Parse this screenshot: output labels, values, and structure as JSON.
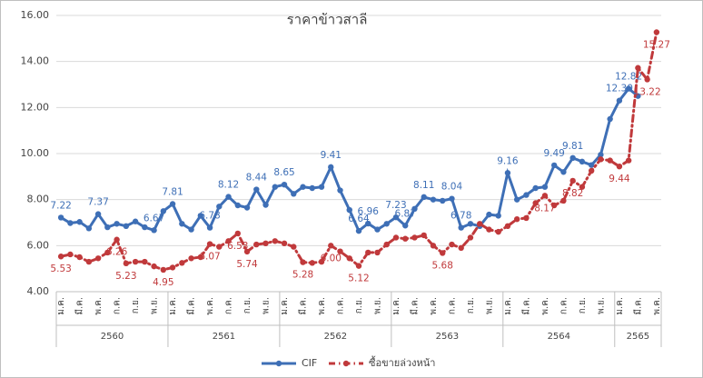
{
  "chart_data": {
    "type": "line",
    "title": "ราคาข้าวสาลี",
    "categories": [
      "ม.ค.",
      null,
      "มี.ค.",
      null,
      "พ.ค.",
      null,
      "ก.ค.",
      null,
      "ก.ย.",
      null,
      "พ.ย.",
      null,
      "ม.ค.",
      null,
      "มี.ค.",
      null,
      "พ.ค.",
      null,
      "ก.ค.",
      null,
      "ก.ย.",
      null,
      "พ.ย.",
      null,
      "ม.ค.",
      null,
      "มี.ค.",
      null,
      "พ.ค.",
      null,
      "ก.ค.",
      null,
      "ก.ย.",
      null,
      "พ.ย.",
      null,
      "ม.ค.",
      null,
      "มี.ค.",
      null,
      "พ.ค.",
      null,
      "ก.ค.",
      null,
      "ก.ย.",
      null,
      "พ.ย.",
      null,
      "ม.ค.",
      null,
      "มี.ค.",
      null,
      "พ.ค.",
      null,
      "ก.ค.",
      null,
      "ก.ย.",
      null,
      "พ.ย.",
      null,
      "ม.ค.",
      null,
      "มี.ค.",
      null,
      "พ.ค."
    ],
    "year_groups": [
      {
        "label": "2560",
        "months": 12
      },
      {
        "label": "2561",
        "months": 12
      },
      {
        "label": "2562",
        "months": 12
      },
      {
        "label": "2563",
        "months": 12
      },
      {
        "label": "2564",
        "months": 12
      },
      {
        "label": "2565",
        "months": 5
      }
    ],
    "series": [
      {
        "name": "CIF",
        "color": "#3e6fb6",
        "dashed": false,
        "values": [
          7.22,
          6.98,
          7.03,
          6.75,
          7.37,
          6.8,
          6.95,
          6.85,
          7.05,
          6.8,
          6.67,
          7.5,
          7.81,
          6.95,
          6.7,
          7.3,
          6.78,
          7.7,
          8.12,
          7.75,
          7.65,
          8.44,
          7.77,
          8.55,
          8.65,
          8.25,
          8.55,
          8.5,
          8.55,
          9.41,
          8.4,
          7.55,
          6.64,
          6.96,
          6.7,
          6.95,
          7.23,
          6.87,
          7.6,
          8.11,
          8.0,
          7.95,
          8.04,
          6.78,
          6.95,
          6.85,
          7.35,
          7.3,
          9.16,
          8.0,
          8.2,
          8.5,
          8.55,
          9.49,
          9.2,
          9.81,
          9.65,
          9.5,
          9.95,
          11.5,
          12.3,
          12.82,
          12.5,
          null,
          null
        ],
        "value_labels": [
          "7.22",
          null,
          null,
          null,
          "7.37",
          null,
          null,
          null,
          null,
          null,
          "6.67",
          null,
          "7.81",
          null,
          null,
          null,
          "6.78",
          null,
          "8.12",
          null,
          null,
          "8.44",
          null,
          null,
          "8.65",
          null,
          null,
          null,
          null,
          "9.41",
          null,
          null,
          "6.64",
          "6.96",
          null,
          null,
          "7.23",
          "6.87",
          null,
          "8.11",
          null,
          null,
          "8.04",
          "6.78",
          null,
          null,
          null,
          null,
          "9.16",
          null,
          null,
          null,
          null,
          "9.49",
          null,
          "9.81",
          null,
          null,
          null,
          null,
          "12.30",
          "12.82",
          null,
          null,
          null
        ]
      },
      {
        "name": "ซื้อขายล่วงหน้า",
        "color": "#c0393b",
        "dashed": true,
        "values": [
          5.53,
          5.62,
          5.5,
          5.3,
          5.45,
          5.7,
          6.26,
          5.23,
          5.3,
          5.3,
          5.1,
          4.95,
          5.05,
          5.25,
          5.45,
          5.5,
          6.07,
          5.95,
          6.2,
          6.53,
          5.74,
          6.05,
          6.1,
          6.2,
          6.1,
          5.95,
          5.28,
          5.25,
          5.3,
          6.0,
          5.75,
          5.45,
          5.12,
          5.7,
          5.7,
          6.05,
          6.35,
          6.3,
          6.35,
          6.45,
          6.0,
          5.68,
          6.05,
          5.9,
          6.35,
          6.95,
          6.7,
          6.6,
          6.85,
          7.15,
          7.2,
          7.85,
          8.17,
          7.75,
          7.95,
          8.82,
          8.55,
          9.25,
          9.75,
          9.7,
          9.44,
          9.7,
          13.72,
          13.22,
          15.27
        ],
        "value_labels": [
          "5.53",
          null,
          null,
          null,
          null,
          null,
          "6.26",
          "5.23",
          null,
          null,
          null,
          "4.95",
          null,
          null,
          null,
          null,
          "6.07",
          null,
          null,
          "6.53",
          "5.74",
          null,
          null,
          null,
          null,
          null,
          "5.28",
          null,
          null,
          "6.00",
          null,
          null,
          "5.12",
          null,
          null,
          null,
          null,
          null,
          null,
          null,
          null,
          "5.68",
          null,
          null,
          null,
          null,
          null,
          null,
          null,
          null,
          null,
          null,
          "8.17",
          null,
          null,
          "8.82",
          null,
          null,
          null,
          null,
          "9.44",
          null,
          null,
          "13.22",
          "15.27"
        ]
      }
    ],
    "ylim": [
      4,
      16
    ],
    "yticks": [
      {
        "value": 4,
        "label": "4.00"
      },
      {
        "value": 6,
        "label": "6.00"
      },
      {
        "value": 8,
        "label": "8.00"
      },
      {
        "value": 10,
        "label": "10.00"
      },
      {
        "value": 12,
        "label": "12.00"
      },
      {
        "value": 14,
        "label": "14.00"
      },
      {
        "value": 16,
        "label": "16.00"
      }
    ],
    "grid": true,
    "legend": "bottom"
  }
}
